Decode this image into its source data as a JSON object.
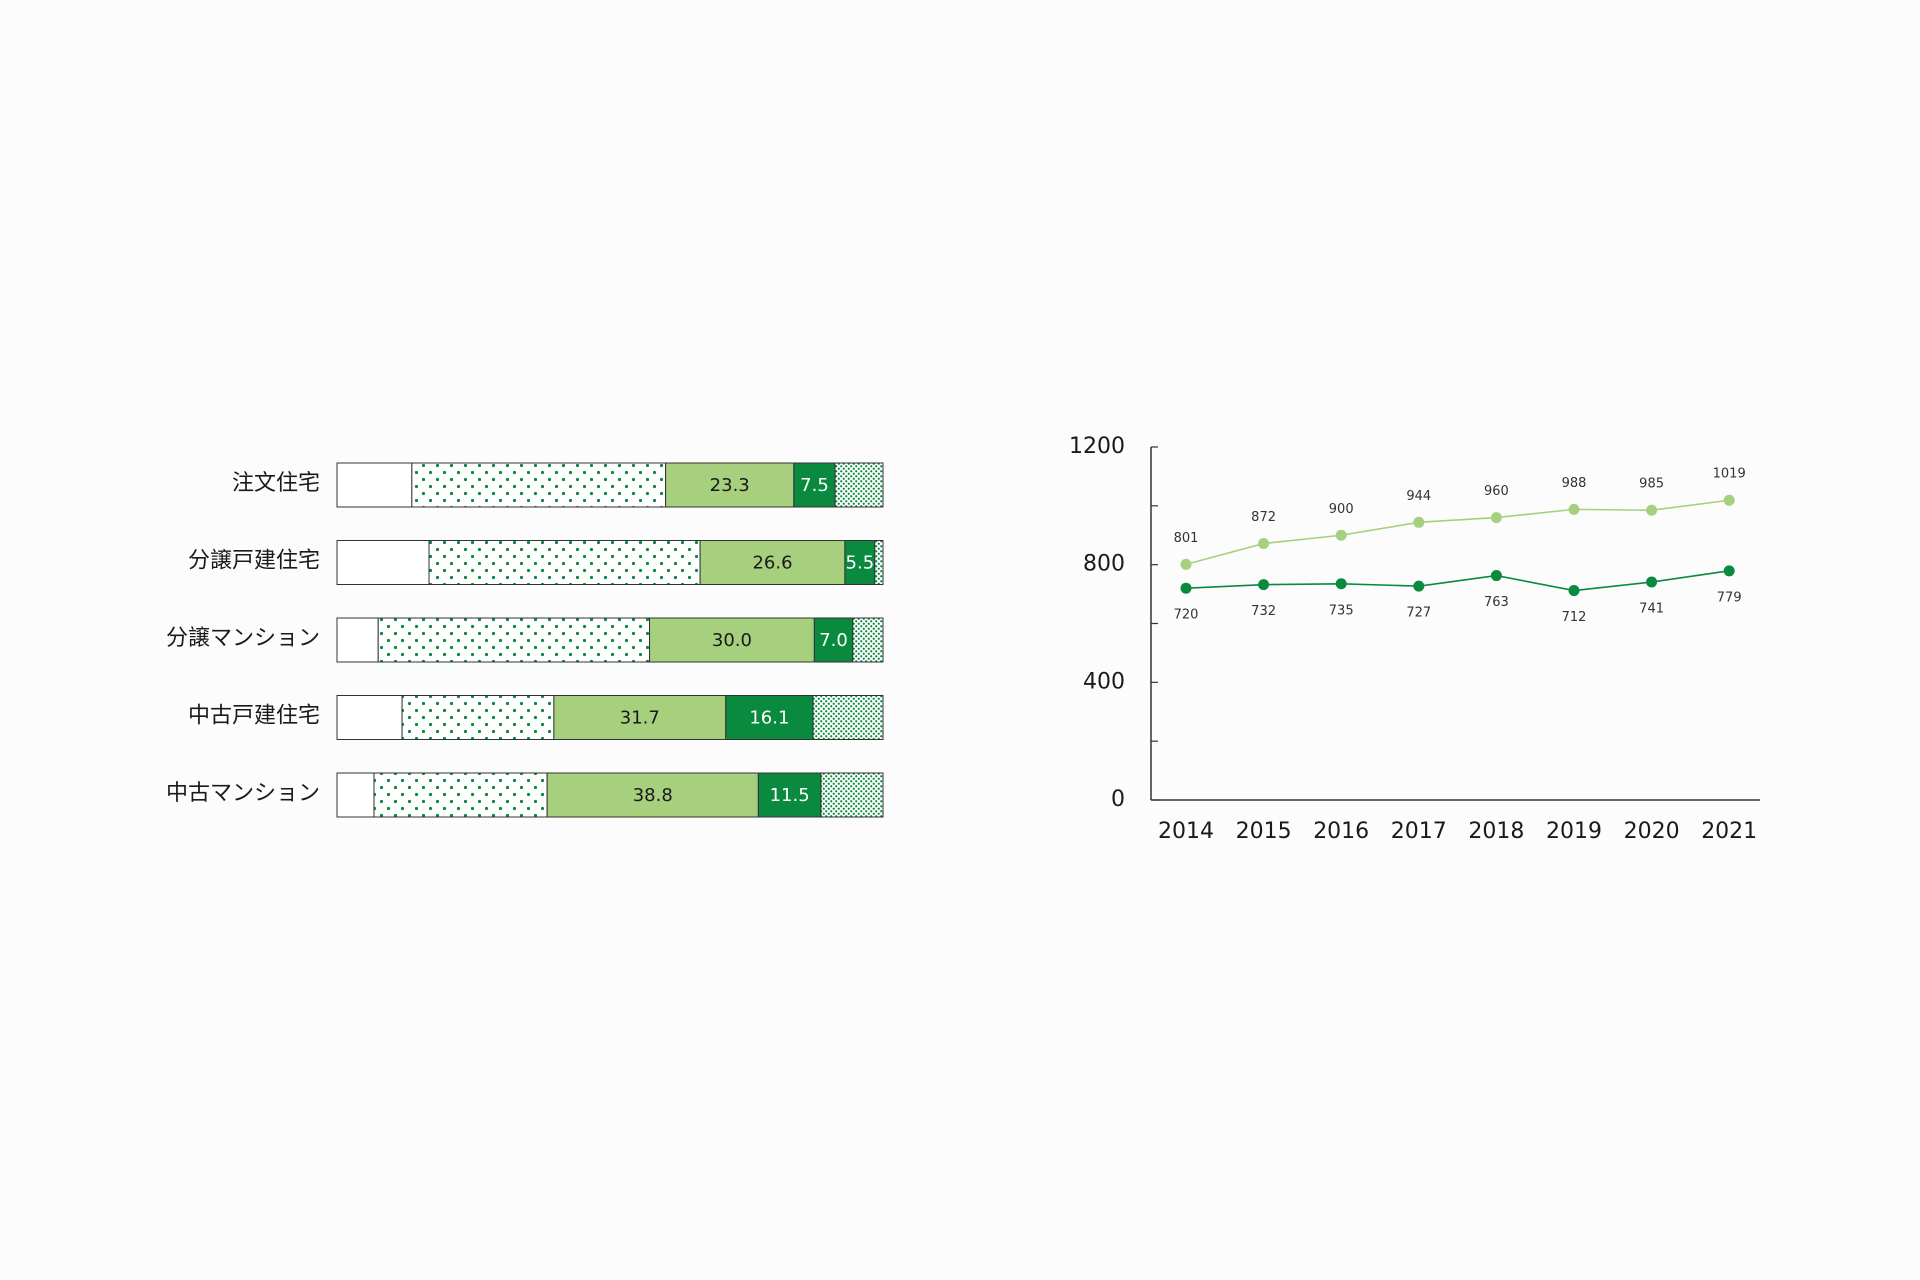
{
  "colors": {
    "white": "#ffffff",
    "dot_green": "#0a8a3f",
    "light_green": "#a6cf7e",
    "dark_green": "#0a8a3f",
    "outline": "#333333",
    "axis": "#333333",
    "line_light": "#a6cf7e",
    "line_dark": "#0a8a3f"
  },
  "chart_data": [
    {
      "type": "bar",
      "orientation": "horizontal",
      "stacked": true,
      "percent_scale": true,
      "categories": [
        "注文住宅",
        "分譲戸建住宅",
        "分譲マンション",
        "中古戸建住宅",
        "中古マンション"
      ],
      "segment_styles": [
        "white",
        "dotted-sparse",
        "light-green",
        "dark-green",
        "dotted-dense"
      ],
      "series": [
        {
          "values": [
            13.6,
            16.9,
            7.5,
            12.0,
            6.8
          ]
        },
        {
          "values": [
            46.1,
            49.8,
            49.4,
            28.0,
            31.8
          ]
        },
        {
          "values": [
            23.3,
            26.6,
            30.0,
            31.7,
            38.8
          ]
        },
        {
          "values": [
            7.5,
            5.5,
            7.0,
            16.1,
            11.5
          ]
        },
        {
          "values": [
            8.7,
            1.5,
            5.5,
            12.9,
            11.4
          ]
        }
      ],
      "printed_labels": [
        [
          "",
          "",
          "23.3",
          "7.5",
          ""
        ],
        [
          "",
          "",
          "26.6",
          "5.5",
          ""
        ],
        [
          "",
          "",
          "30.0",
          "7.0",
          ""
        ],
        [
          "",
          "",
          "31.7",
          "16.1",
          ""
        ],
        [
          "",
          "",
          "38.8",
          "11.5",
          ""
        ]
      ]
    },
    {
      "type": "line",
      "x": [
        "2014",
        "2015",
        "2016",
        "2017",
        "2018",
        "2019",
        "2020",
        "2021"
      ],
      "ylim": [
        0,
        1200
      ],
      "y_ticks": [
        "0",
        "400",
        "800",
        "1200"
      ],
      "y_minor_step": 200,
      "series": [
        {
          "style": "light",
          "values": [
            801,
            872,
            900,
            944,
            960,
            988,
            985,
            1019
          ],
          "label_position": "above"
        },
        {
          "style": "dark",
          "values": [
            720,
            732,
            735,
            727,
            763,
            712,
            741,
            779
          ],
          "label_position": "below"
        }
      ]
    }
  ]
}
